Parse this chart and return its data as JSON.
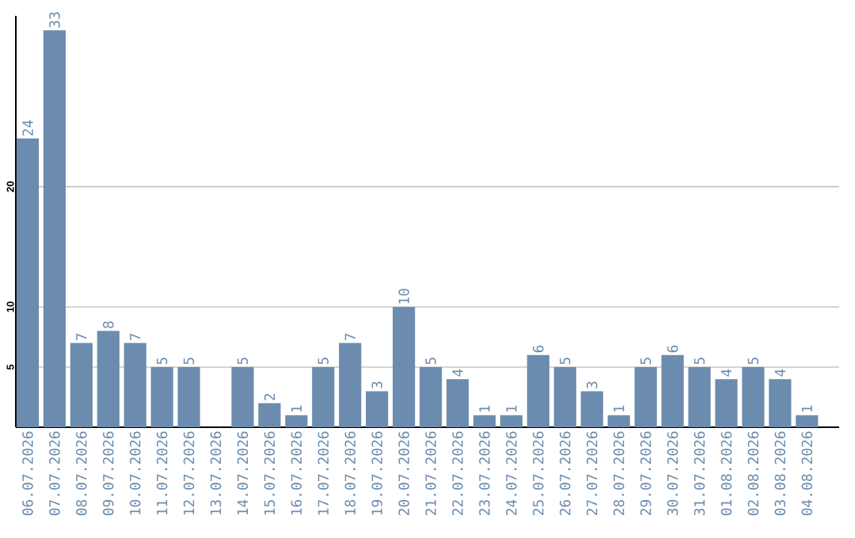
{
  "chart_data": {
    "type": "bar",
    "categories": [
      "06.07.2026",
      "07.07.2026",
      "08.07.2026",
      "09.07.2026",
      "10.07.2026",
      "11.07.2026",
      "12.07.2026",
      "13.07.2026",
      "14.07.2026",
      "15.07.2026",
      "16.07.2026",
      "17.07.2026",
      "18.07.2026",
      "19.07.2026",
      "20.07.2026",
      "21.07.2026",
      "22.07.2026",
      "23.07.2026",
      "24.07.2026",
      "25.07.2026",
      "26.07.2026",
      "27.07.2026",
      "28.07.2026",
      "29.07.2026",
      "30.07.2026",
      "31.07.2026",
      "01.08.2026",
      "02.08.2026",
      "03.08.2026",
      "04.08.2026"
    ],
    "values": [
      24,
      33,
      7,
      8,
      7,
      5,
      5,
      null,
      5,
      2,
      1,
      5,
      7,
      3,
      10,
      5,
      4,
      1,
      1,
      6,
      5,
      3,
      1,
      5,
      6,
      5,
      4,
      5,
      4,
      1
    ],
    "color": "#6b8cae",
    "ylim": [
      0,
      34.2
    ],
    "yticks": [
      5,
      10,
      20
    ],
    "grid": "y",
    "data_labels": true
  }
}
